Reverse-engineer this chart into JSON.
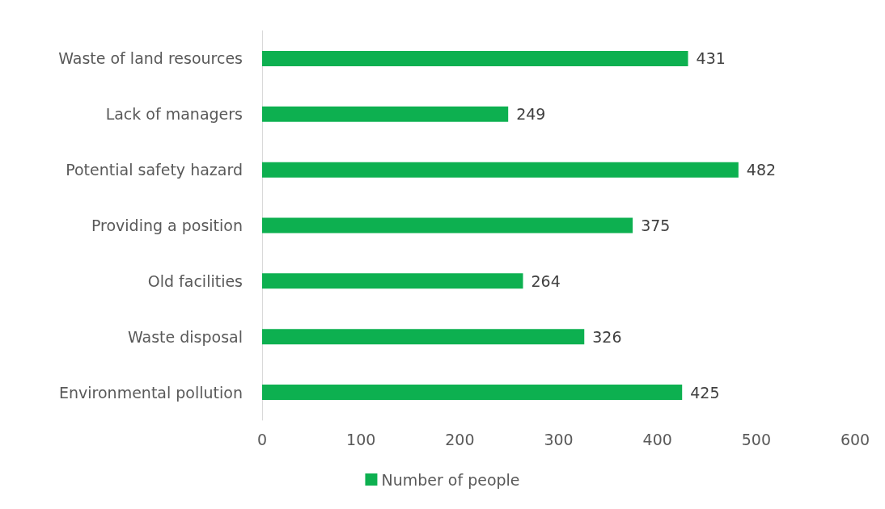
{
  "chart_data": {
    "type": "bar",
    "orientation": "horizontal",
    "categories": [
      "Waste of land resources",
      "Lack of managers",
      "Potential safety hazard",
      "Providing a position",
      "Old facilities",
      "Waste disposal",
      "Environmental pollution"
    ],
    "series": [
      {
        "name": "Number of people",
        "color": "#0db050",
        "values": [
          431,
          249,
          482,
          375,
          264,
          326,
          425
        ]
      }
    ],
    "xlim": [
      0,
      600
    ],
    "xticks": [
      0,
      100,
      200,
      300,
      400,
      500,
      600
    ],
    "grid": false,
    "legend": "bottom",
    "data_labels": true
  }
}
